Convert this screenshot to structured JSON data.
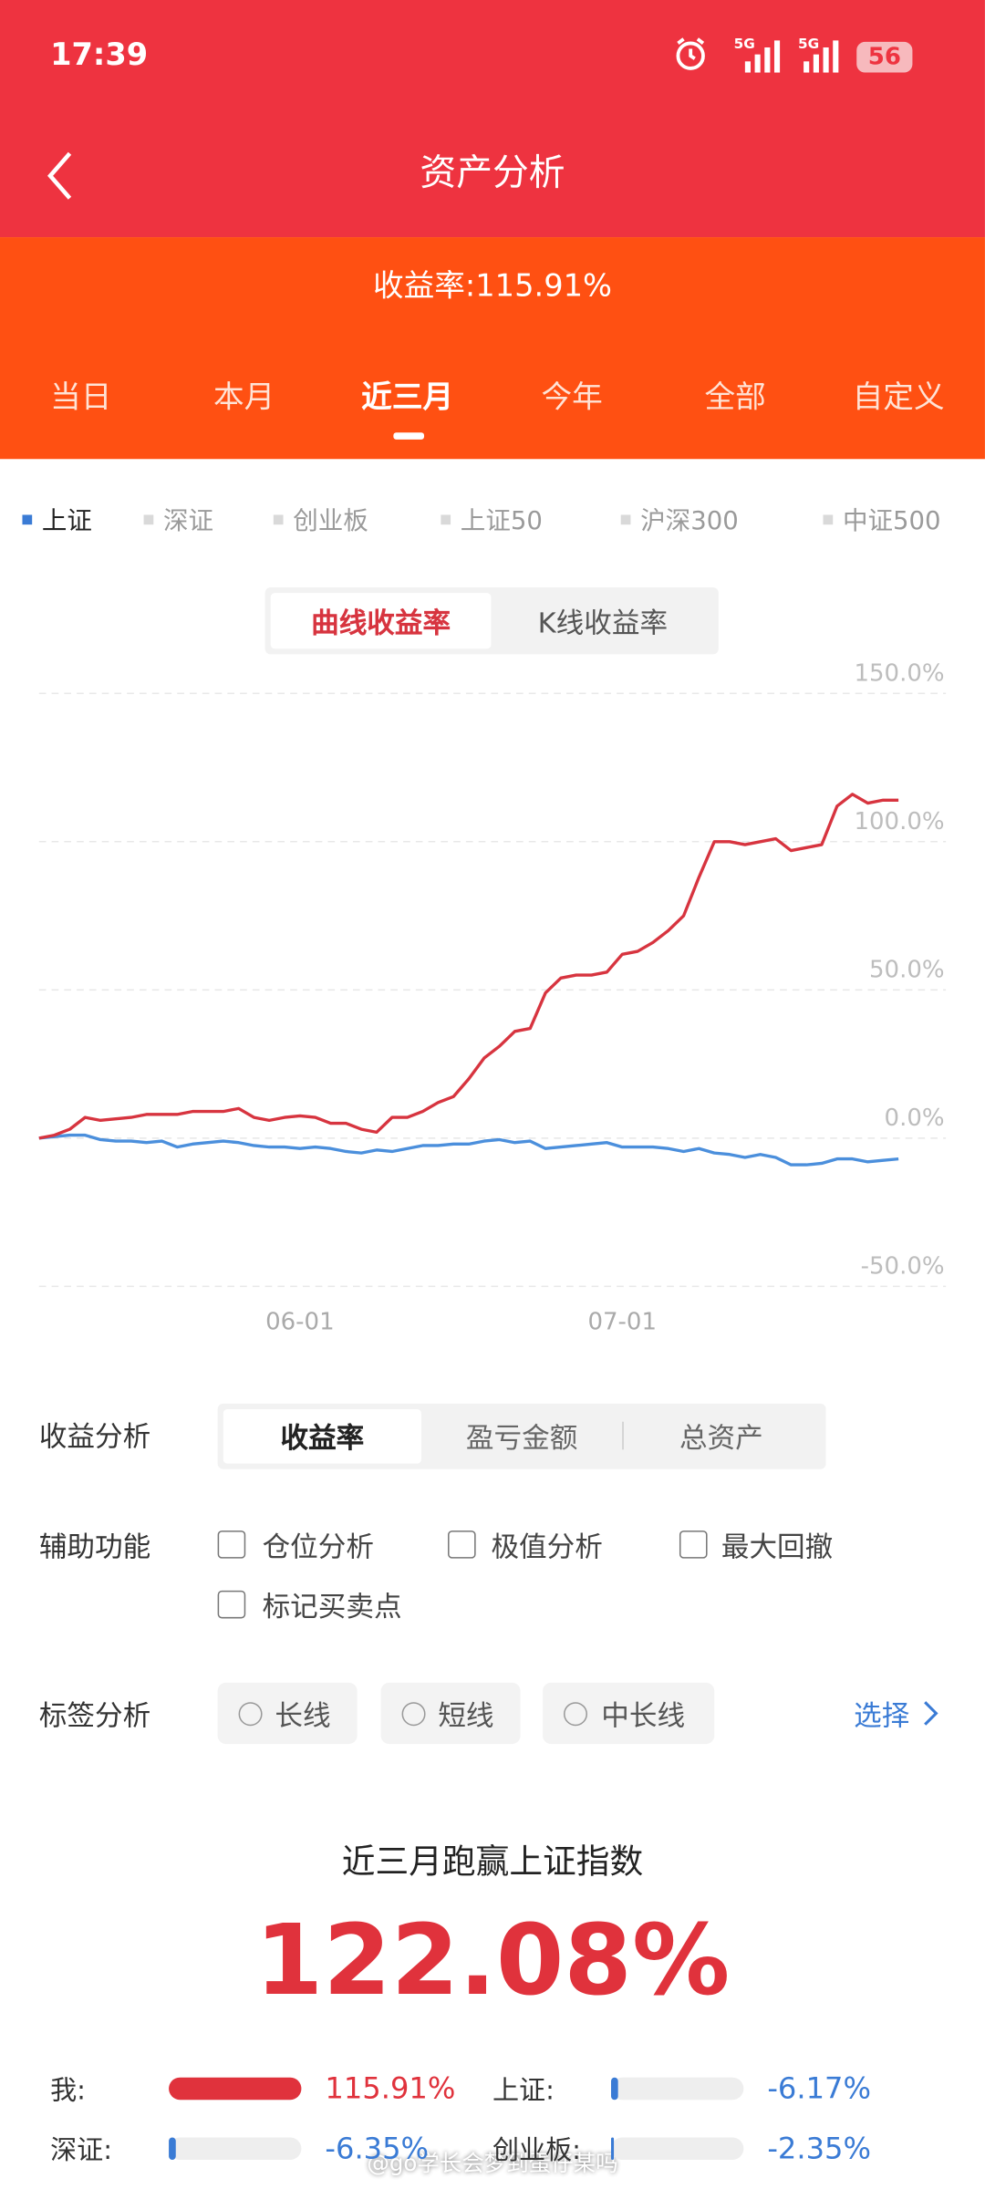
{
  "status": {
    "time": "17:39",
    "network": [
      "5G",
      "5G"
    ],
    "battery": "56"
  },
  "header": {
    "title": "资产分析"
  },
  "summary": "收益率:115.91%",
  "tabs": {
    "items": [
      "当日",
      "本月",
      "近三月",
      "今年",
      "全部",
      "自定义"
    ],
    "active": 2
  },
  "benchmarks": [
    "深证",
    "创业板",
    "上证50",
    "沪深300",
    "中证500"
  ],
  "chart_toggle": {
    "items": [
      "曲线收益率",
      "K线收益率"
    ],
    "active": 0
  },
  "chart_data": {
    "type": "line",
    "categories": [
      null,
      null,
      null,
      null,
      null,
      null,
      null,
      null,
      null,
      null,
      null,
      null,
      null,
      null,
      null,
      null,
      null,
      "06-01",
      null,
      null,
      null,
      null,
      null,
      null,
      null,
      null,
      null,
      null,
      null,
      null,
      null,
      null,
      null,
      null,
      null,
      null,
      null,
      null,
      "07-01",
      null,
      null,
      null,
      null,
      null,
      null,
      null,
      null,
      null,
      null,
      null,
      null,
      null,
      null,
      null,
      null,
      null,
      null
    ],
    "series": [
      {
        "color": "#d7343f",
        "values": [
          0,
          1,
          3,
          7,
          6,
          6.5,
          7,
          8,
          8,
          8,
          9,
          9,
          9,
          10,
          7,
          6,
          7,
          7.5,
          7,
          5,
          5,
          3,
          2,
          7,
          7,
          9,
          12,
          14,
          20,
          27,
          31,
          36,
          37,
          49,
          54,
          55,
          55,
          56,
          62,
          63,
          66,
          70,
          75,
          88,
          100,
          100,
          99,
          100,
          101,
          97,
          98,
          99,
          112,
          116,
          113,
          114,
          114
        ]
      },
      {
        "name": "上证",
        "color": "#4b8fdc",
        "values": [
          0,
          0.5,
          1,
          1,
          -0.5,
          -1,
          -1,
          -1.5,
          -1,
          -3,
          -2,
          -1.5,
          -1,
          -1.5,
          -2.5,
          -3,
          -3,
          -3.5,
          -3,
          -3.5,
          -4.5,
          -5,
          -4,
          -4.5,
          -3.5,
          -2.5,
          -2.5,
          -2,
          -2,
          -1,
          -0.5,
          -1.5,
          -1,
          -3.5,
          -3,
          -2.5,
          -2,
          -1.5,
          -3,
          -3,
          -3,
          -3.5,
          -4.5,
          -3.5,
          -5,
          -5.5,
          -6.5,
          -5.5,
          -6.5,
          -9,
          -9,
          -8.5,
          -7,
          -7,
          -8,
          -7.5,
          -7
        ]
      }
    ],
    "ylim": [
      -50,
      150
    ],
    "yticks": [
      {
        "value": -50,
        "label": "-50.0%"
      },
      {
        "value": 0,
        "label": "0.0%"
      },
      {
        "value": 50,
        "label": "50.0%"
      },
      {
        "value": 100,
        "label": "100.0%"
      },
      {
        "value": 150,
        "label": "150.0%"
      }
    ],
    "grid": true
  },
  "analysis": {
    "label": "收益分析",
    "options": [
      "收益率",
      "盈亏金额",
      "总资产"
    ],
    "active": 0
  },
  "aux": {
    "label": "辅助功能",
    "options": [
      "仓位分析",
      "极值分析",
      "最大回撤",
      "标记买卖点"
    ]
  },
  "tags": {
    "label": "标签分析",
    "options": [
      "长线",
      "短线",
      "中长线"
    ],
    "link": "选择"
  },
  "beat": {
    "title": "近三月跑赢上证指数",
    "value": "122.08%"
  },
  "comparison": [
    {
      "label": "我:",
      "value": 115.91,
      "value_label": "115.91%"
    },
    {
      "label": "上证:",
      "value": -6.17,
      "value_label": "-6.17%"
    },
    {
      "label": "深证:",
      "value": -6.35,
      "value_label": "-6.35%"
    },
    {
      "label": "创业板:",
      "value": -2.35,
      "value_label": "-2.35%"
    }
  ],
  "watermark": "@go学长会梦到蛋仔某吗"
}
